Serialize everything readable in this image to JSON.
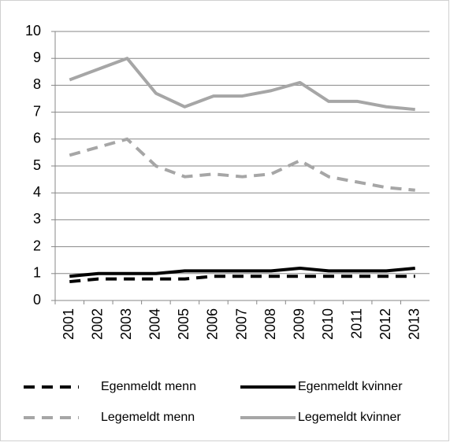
{
  "chart_data": {
    "type": "line",
    "categories": [
      "2001",
      "2002",
      "2003",
      "2004",
      "2005",
      "2006",
      "2007",
      "2008",
      "2009",
      "2010",
      "2011",
      "2012",
      "2013"
    ],
    "series": [
      {
        "name": "Egenmeldt menn",
        "color": "#000000",
        "dashed": true,
        "values": [
          0.7,
          0.8,
          0.8,
          0.8,
          0.8,
          0.9,
          0.9,
          0.9,
          0.9,
          0.9,
          0.9,
          0.9,
          0.9
        ]
      },
      {
        "name": "Egenmeldt kvinner",
        "color": "#000000",
        "dashed": false,
        "values": [
          0.9,
          1.0,
          1.0,
          1.0,
          1.1,
          1.1,
          1.1,
          1.1,
          1.2,
          1.1,
          1.1,
          1.1,
          1.2
        ]
      },
      {
        "name": "Legemeldt menn",
        "color": "#a6a6a6",
        "dashed": true,
        "values": [
          5.4,
          5.7,
          6.0,
          5.0,
          4.6,
          4.7,
          4.6,
          4.7,
          5.2,
          4.6,
          4.4,
          4.2,
          4.1
        ]
      },
      {
        "name": "Legemeldt kvinner",
        "color": "#a6a6a6",
        "dashed": false,
        "values": [
          8.2,
          8.6,
          9.0,
          7.7,
          7.2,
          7.6,
          7.6,
          7.8,
          8.1,
          7.4,
          7.4,
          7.2,
          7.1
        ]
      }
    ],
    "ylim": [
      0,
      10
    ],
    "yticks": [
      0,
      1,
      2,
      3,
      4,
      5,
      6,
      7,
      8,
      9,
      10
    ],
    "grid": true,
    "legend": "bottom"
  }
}
